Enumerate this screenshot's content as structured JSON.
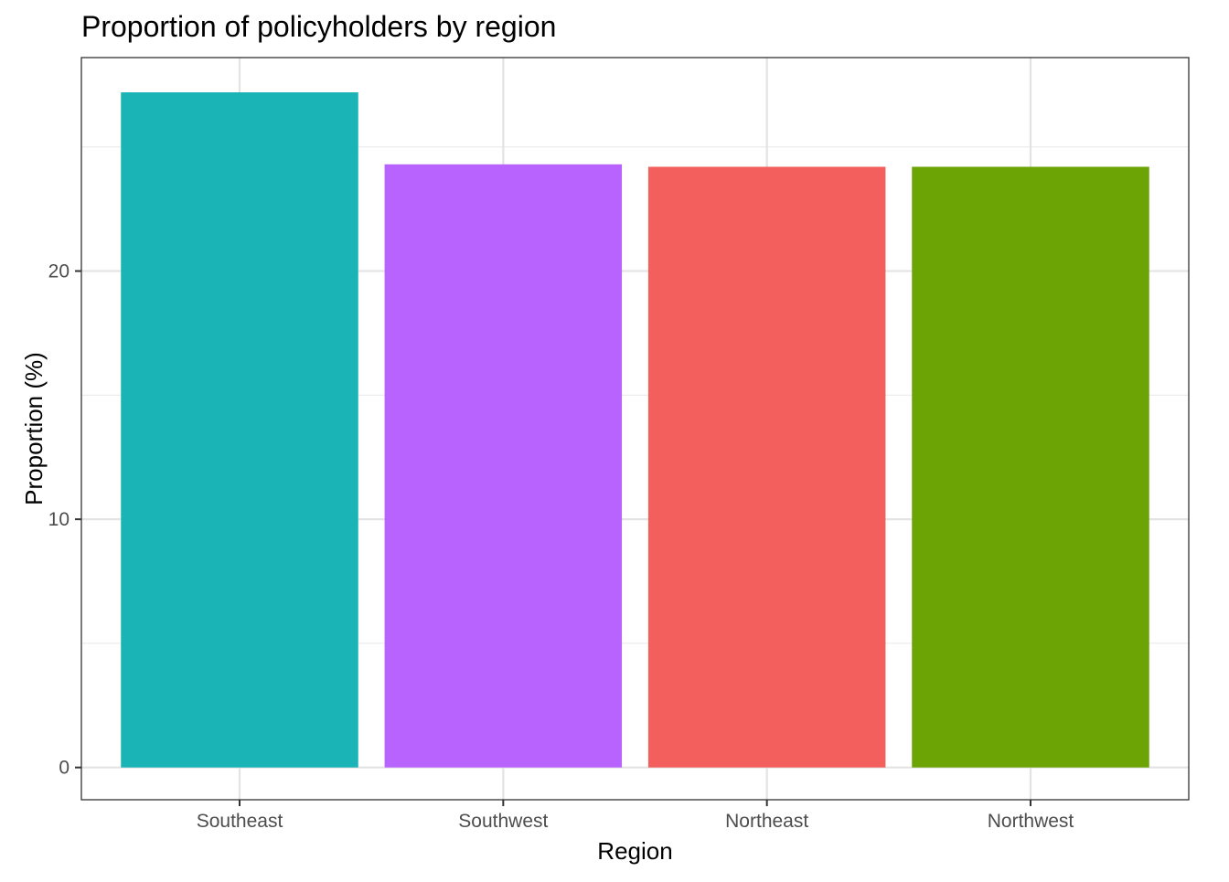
{
  "chart_data": {
    "type": "bar",
    "title": "Proportion of policyholders by region",
    "xlabel": "Region",
    "ylabel": "Proportion (%)",
    "categories": [
      "Southeast",
      "Southwest",
      "Northeast",
      "Northwest"
    ],
    "values": [
      27.2,
      24.3,
      24.2,
      24.2
    ],
    "colors": [
      "#1AB3B6",
      "#B963FF",
      "#F25F5C",
      "#6BA404"
    ],
    "ylim": [
      -1.3,
      28.6
    ],
    "yticks": [
      0,
      10,
      20
    ],
    "yticks_minor": [
      5,
      15,
      25
    ],
    "grid": true,
    "legend": "none"
  }
}
